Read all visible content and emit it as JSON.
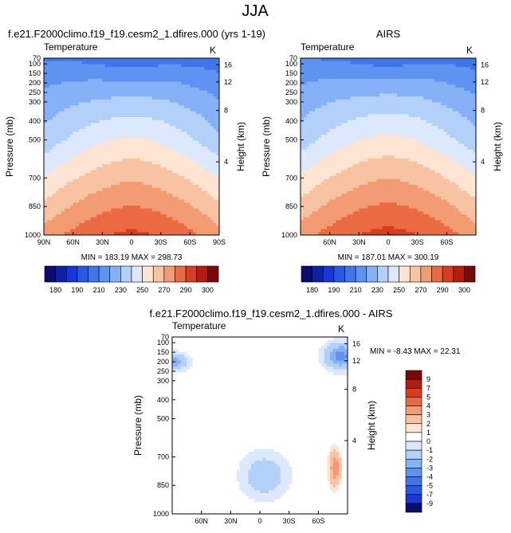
{
  "figure": {
    "season_title": "JJA"
  },
  "chart_data": [
    {
      "type": "heatmap",
      "title": "f.e21.F2000climo.f19_f19.cesm2_1.dfires.000 (yrs 1-19)",
      "variable": "Temperature",
      "units": "K",
      "ylabel": "Pressure (mb)",
      "y2label": "Height (km)",
      "x_ticks": [
        "90N",
        "60N",
        "30N",
        "0",
        "30S",
        "60S",
        "90S"
      ],
      "y_ticks": [
        "70",
        "100",
        "150",
        "200",
        "250",
        "300",
        "400",
        "500",
        "700",
        "850",
        "1000"
      ],
      "y2_ticks": [
        "16",
        "12",
        "8",
        "4"
      ],
      "stats": "MIN = 183.19   MAX = 298.73",
      "min": 183.19,
      "max": 298.73,
      "field": "model"
    },
    {
      "type": "heatmap",
      "title": "AIRS",
      "variable": "Temperature",
      "units": "K",
      "ylabel": "Pressure (mb)",
      "y2label": "Height (km)",
      "x_ticks": [
        "60N",
        "30N",
        "0",
        "30S",
        "60S"
      ],
      "y_ticks": [
        "70",
        "100",
        "150",
        "200",
        "250",
        "300",
        "400",
        "500",
        "700",
        "850",
        "1000"
      ],
      "y2_ticks": [
        "16",
        "12",
        "8",
        "4"
      ],
      "stats": "MIN = 187.01   MAX = 300.19",
      "min": 187.01,
      "max": 300.19,
      "field": "obs"
    },
    {
      "type": "heatmap",
      "title": "f.e21.F2000climo.f19_f19.cesm2_1.dfires.000 - AIRS",
      "variable": "Temperature",
      "units": "K",
      "ylabel": "Pressure (mb)",
      "y2label": "Height (km)",
      "x_ticks": [
        "60N",
        "30N",
        "0",
        "30S",
        "60S"
      ],
      "y_ticks": [
        "70",
        "100",
        "150",
        "200",
        "250",
        "300",
        "400",
        "500",
        "700",
        "850",
        "1000"
      ],
      "y2_ticks": [
        "16",
        "12",
        "8",
        "4"
      ],
      "stats": "MIN = -8.43   MAX = 22.31",
      "min": -8.43,
      "max": 22.31,
      "field": "diff"
    }
  ],
  "colorbars": {
    "absolute": {
      "labels": [
        "180",
        "190",
        "210",
        "230",
        "250",
        "270",
        "290",
        "300"
      ],
      "levels": [
        180,
        185,
        190,
        200,
        210,
        220,
        230,
        240,
        250,
        260,
        270,
        280,
        290,
        295,
        300
      ],
      "colors": [
        "#0a0c6e",
        "#0d22a8",
        "#1638d6",
        "#2858e6",
        "#3f76ec",
        "#5f93f1",
        "#86b1f6",
        "#b3d0f9",
        "#dce8fc",
        "#fde4d3",
        "#f8c3a3",
        "#f39b73",
        "#ea6b43",
        "#d93c1f",
        "#b41c10",
        "#7a0806"
      ]
    },
    "difference": {
      "labels": [
        "9",
        "7",
        "5",
        "4",
        "3",
        "2",
        "1",
        "0",
        "-1",
        "-2",
        "-3",
        "-4",
        "-5",
        "-7",
        "-9"
      ],
      "colors": [
        "#7a0806",
        "#b41c10",
        "#d93c1f",
        "#ea6b43",
        "#f39b73",
        "#f8c3a3",
        "#fde4d3",
        "#ffffff",
        "#dce8fc",
        "#b3d0f9",
        "#86b1f6",
        "#5f93f1",
        "#3f76ec",
        "#2858e6",
        "#1638d6",
        "#0a0c6e"
      ]
    }
  }
}
